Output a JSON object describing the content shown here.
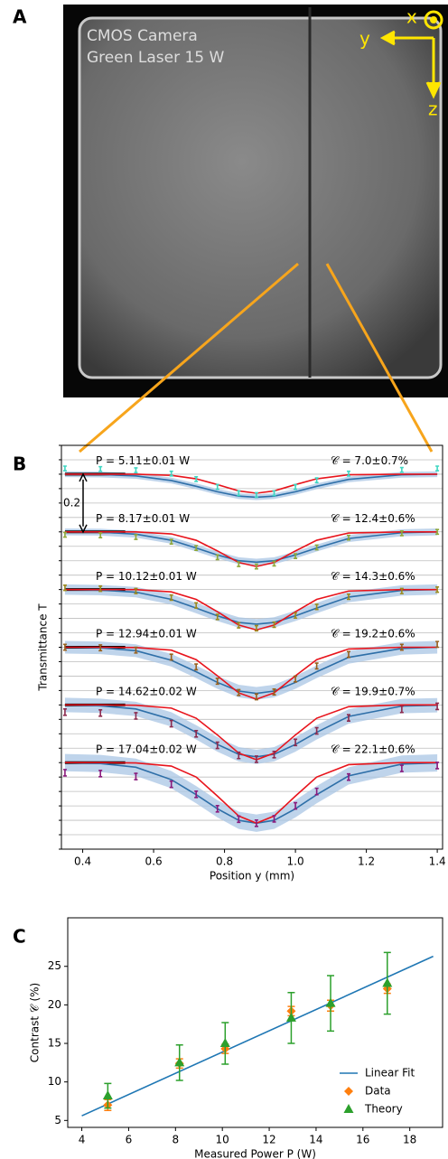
{
  "chart_data": [
    {
      "type": "image",
      "label": "A",
      "annotations": [
        "CMOS Camera",
        "Green Laser 15 W"
      ],
      "axis_labels": [
        "x",
        "y",
        "z"
      ]
    },
    {
      "type": "line",
      "label": "B",
      "ylabel": "Transmittance T",
      "xlabel": "Position y (mm)",
      "xlim": [
        0.34,
        1.415
      ],
      "ylim": [
        -0.3,
        1.1
      ],
      "xticks": [
        0.4,
        0.6,
        0.8,
        {
          "value": 1,
          "label": "1.0"
        },
        1.2,
        1.4
      ],
      "yticks": [
        -0.3,
        -0.25,
        -0.2,
        -0.15,
        -0.1,
        -0.05,
        0,
        0.05,
        0.1,
        0.15,
        0.2,
        0.25,
        0.3,
        0.35,
        0.4,
        0.45,
        0.5,
        0.55,
        0.6,
        0.65,
        0.7,
        0.75,
        0.8,
        0.85,
        0.9,
        0.95,
        1,
        1.05,
        1.1
      ],
      "scale_bar": 0.2,
      "theory_color": "#e8141c",
      "fit_color": "#2e6fa8",
      "band_color": "#a9c6e4",
      "x": [
        0.35,
        0.45,
        0.55,
        0.65,
        0.72,
        0.78,
        0.84,
        0.89,
        0.94,
        1.0,
        1.06,
        1.15,
        1.3,
        1.4
      ],
      "profiles": [
        {
          "P_label": "P = 5.11±0.01 W",
          "C_label": "𝒞 = 7.0±0.7%",
          "color": "#3fd6c2",
          "baseline": 1.0,
          "error": 0.008,
          "band": 0.01,
          "data": [
            1.02,
            1.018,
            1.014,
            1.002,
            0.983,
            0.956,
            0.934,
            0.928,
            0.934,
            0.956,
            0.979,
            1.002,
            1.015,
            1.02
          ],
          "theory": [
            1.0,
            1.0,
            1.0,
            0.996,
            0.984,
            0.964,
            0.942,
            0.934,
            0.942,
            0.964,
            0.984,
            0.998,
            1.0,
            1.0
          ],
          "fit": [
            1.0,
            0.999,
            0.994,
            0.978,
            0.958,
            0.939,
            0.924,
            0.92,
            0.924,
            0.939,
            0.958,
            0.982,
            0.998,
            1.0
          ]
        },
        {
          "P_label": "P = 8.17±0.01 W",
          "C_label": "𝒞 = 12.4±0.6%",
          "color": "#8fa83a",
          "baseline": 0.8,
          "error": 0.008,
          "band": 0.012,
          "data": [
            0.79,
            0.788,
            0.782,
            0.766,
            0.744,
            0.712,
            0.688,
            0.68,
            0.69,
            0.716,
            0.746,
            0.78,
            0.795,
            0.8
          ],
          "theory": [
            0.8,
            0.8,
            0.8,
            0.793,
            0.771,
            0.734,
            0.694,
            0.68,
            0.694,
            0.734,
            0.771,
            0.796,
            0.8,
            0.8
          ],
          "fit": [
            0.8,
            0.799,
            0.792,
            0.771,
            0.744,
            0.72,
            0.7,
            0.695,
            0.7,
            0.72,
            0.744,
            0.777,
            0.797,
            0.8
          ]
        },
        {
          "P_label": "P = 10.12±0.01 W",
          "C_label": "𝒞 = 14.3±0.6%",
          "color": "#9c8a1e",
          "baseline": 0.6,
          "error": 0.009,
          "band": 0.018,
          "data": [
            0.606,
            0.603,
            0.595,
            0.572,
            0.545,
            0.505,
            0.476,
            0.466,
            0.478,
            0.51,
            0.54,
            0.575,
            0.595,
            0.6
          ],
          "theory": [
            0.6,
            0.6,
            0.6,
            0.592,
            0.566,
            0.523,
            0.477,
            0.46,
            0.477,
            0.523,
            0.566,
            0.595,
            0.6,
            0.6
          ],
          "fit": [
            0.6,
            0.598,
            0.591,
            0.566,
            0.536,
            0.509,
            0.486,
            0.48,
            0.486,
            0.509,
            0.536,
            0.574,
            0.597,
            0.6
          ]
        },
        {
          "P_label": "P = 12.94±0.01 W",
          "C_label": "𝒞 = 19.2±0.6%",
          "color": "#98601c",
          "baseline": 0.4,
          "error": 0.01,
          "band": 0.022,
          "data": [
            0.4,
            0.398,
            0.39,
            0.366,
            0.332,
            0.282,
            0.243,
            0.228,
            0.245,
            0.29,
            0.335,
            0.375,
            0.4,
            0.41
          ],
          "theory": [
            0.4,
            0.4,
            0.399,
            0.39,
            0.357,
            0.301,
            0.242,
            0.22,
            0.242,
            0.301,
            0.357,
            0.394,
            0.4,
            0.4
          ],
          "fit": [
            0.4,
            0.398,
            0.388,
            0.355,
            0.315,
            0.278,
            0.248,
            0.24,
            0.248,
            0.278,
            0.315,
            0.365,
            0.396,
            0.4
          ]
        },
        {
          "P_label": "P = 14.62±0.02 W",
          "C_label": "𝒞 = 19.9±0.7%",
          "color": "#8c2a4e",
          "baseline": 0.2,
          "error": 0.011,
          "band": 0.025,
          "data": [
            0.175,
            0.172,
            0.162,
            0.135,
            0.1,
            0.06,
            0.025,
            0.012,
            0.028,
            0.07,
            0.11,
            0.155,
            0.185,
            0.195
          ],
          "theory": [
            0.2,
            0.2,
            0.199,
            0.189,
            0.154,
            0.096,
            0.033,
            0.01,
            0.033,
            0.096,
            0.154,
            0.194,
            0.2,
            0.2
          ],
          "fit": [
            0.2,
            0.197,
            0.186,
            0.15,
            0.105,
            0.063,
            0.029,
            0.02,
            0.029,
            0.063,
            0.105,
            0.16,
            0.196,
            0.199
          ]
        },
        {
          "P_label": "P = 17.04±0.02 W",
          "C_label": "𝒞 = 22.1±0.6%",
          "color": "#8a1a7c",
          "baseline": 0,
          "error": 0.011,
          "band": 0.03,
          "data": [
            -0.035,
            -0.038,
            -0.048,
            -0.075,
            -0.11,
            -0.16,
            -0.196,
            -0.21,
            -0.195,
            -0.15,
            -0.1,
            -0.05,
            -0.02,
            -0.01
          ],
          "theory": [
            0,
            0,
            -0.001,
            -0.012,
            -0.05,
            -0.116,
            -0.185,
            -0.21,
            -0.185,
            -0.116,
            -0.05,
            -0.007,
            0,
            0
          ],
          "fit": [
            0,
            -0.003,
            -0.016,
            -0.059,
            -0.111,
            -0.16,
            -0.2,
            -0.21,
            -0.2,
            -0.16,
            -0.111,
            -0.046,
            -0.005,
            -0.001
          ]
        }
      ]
    },
    {
      "type": "scatter",
      "label": "C",
      "xlabel": "Measured Power P (W)",
      "ylabel": "Contrast 𝒞 (%)",
      "xlim": [
        3.4,
        19.4
      ],
      "ylim": [
        4.1,
        31.3
      ],
      "xticks": [
        4,
        6,
        8,
        10,
        12,
        14,
        16,
        18
      ],
      "yticks": [
        5,
        10,
        15,
        20,
        25
      ],
      "legend": "lower right",
      "series": [
        {
          "name": "Linear Fit",
          "kind": "line",
          "color": "#1f77b4",
          "x": [
            4,
            19
          ],
          "values": [
            5.6,
            26.3
          ]
        },
        {
          "name": "Data",
          "kind": "diamond",
          "color": "#ff7f0e",
          "x": [
            5.11,
            8.17,
            10.12,
            12.94,
            14.62,
            17.04
          ],
          "values": [
            7.0,
            12.4,
            14.3,
            19.2,
            19.9,
            22.1
          ],
          "errors": [
            0.7,
            0.6,
            0.6,
            0.6,
            0.7,
            0.6
          ]
        },
        {
          "name": "Theory",
          "kind": "triangle",
          "color": "#2ca02c",
          "x": [
            5.11,
            8.17,
            10.12,
            12.94,
            14.62,
            17.04
          ],
          "values": [
            8.2,
            12.5,
            15.0,
            18.3,
            20.2,
            22.8
          ],
          "errors": [
            1.6,
            2.3,
            2.7,
            3.3,
            3.6,
            4.0
          ]
        }
      ]
    }
  ]
}
